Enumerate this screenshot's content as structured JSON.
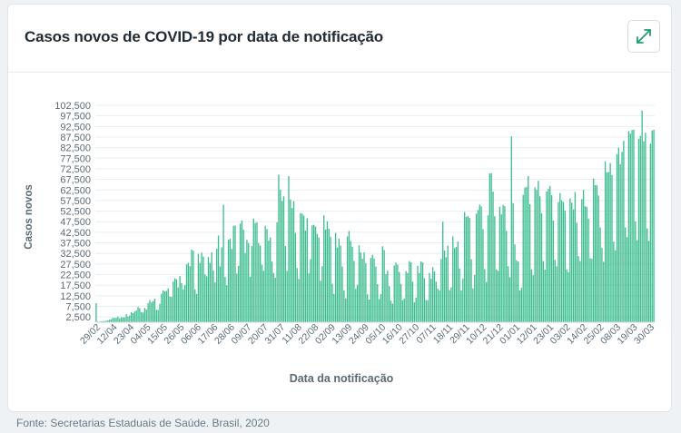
{
  "header": {
    "title": "Casos novos de COVID-19 por data de notificação"
  },
  "footer": {
    "source": "Fonte: Secretarias Estaduais de Saúde. Brasil, 2020"
  },
  "icons": {
    "expand": "expand-arrows-icon"
  },
  "colors": {
    "bar": "#3dbd8f",
    "accent": "#1f9e72",
    "grid": "#e8edf0"
  },
  "chart_data": {
    "type": "bar",
    "title": "",
    "xlabel": "Data da notificação",
    "ylabel": "Casos novos",
    "ylim": [
      0,
      102500
    ],
    "grid": true,
    "y_ticks": [
      "2,500",
      "7,500",
      "12,500",
      "17,500",
      "22,500",
      "27,500",
      "32,500",
      "37,500",
      "42,500",
      "47,500",
      "52,500",
      "57,500",
      "62,500",
      "67,500",
      "72,500",
      "77,500",
      "82,500",
      "87,500",
      "92,500",
      "97,500",
      "102,500"
    ],
    "x_tick_labels": [
      "29/02",
      "12/04",
      "23/04",
      "04/05",
      "15/05",
      "26/05",
      "06/06",
      "17/06",
      "28/06",
      "09/07",
      "20/07",
      "31/07",
      "11/08",
      "22/08",
      "02/09",
      "13/09",
      "24/09",
      "05/10",
      "16/10",
      "27/10",
      "07/11",
      "18/11",
      "29/11",
      "10/12",
      "21/12",
      "01/01",
      "12/01",
      "23/01",
      "03/02",
      "14/02",
      "25/02",
      "08/03",
      "19/03",
      "30/03"
    ],
    "x_start_date": "2020-02-26",
    "x_end_date": "2021-03-31",
    "values": [
      9000,
      300,
      300,
      500,
      500,
      600,
      700,
      900,
      1200,
      1500,
      2100,
      2000,
      2100,
      2700,
      1800,
      2300,
      2300,
      2300,
      3800,
      2700,
      3200,
      4700,
      4300,
      5100,
      5600,
      7200,
      6600,
      4800,
      4600,
      6800,
      6000,
      9000,
      10500,
      9400,
      10000,
      11100,
      5900,
      5800,
      8700,
      13400,
      15100,
      14600,
      14800,
      16000,
      12200,
      12000,
      19200,
      20800,
      20300,
      16500,
      21800,
      18500,
      15600,
      17500,
      27300,
      28000,
      26500,
      34300,
      33800,
      15600,
      13400,
      32300,
      28000,
      32900,
      31000,
      22600,
      21700,
      30800,
      28000,
      33000,
      24500,
      18800,
      34800,
      41000,
      26400,
      35400,
      55500,
      21400,
      17500,
      39000,
      39500,
      34600,
      45600,
      45700,
      23000,
      26700,
      46600,
      48100,
      43800,
      32700,
      38900,
      37400,
      21500,
      36000,
      49000,
      46800,
      47300,
      37400,
      36200,
      27200,
      24300,
      45600,
      44100,
      38500,
      40100,
      28700,
      23200,
      21000,
      47200,
      69700,
      62600,
      57300,
      59500,
      36000,
      24300,
      69000,
      58000,
      54000,
      57200,
      42200,
      25600,
      20500,
      51600,
      51300,
      50400,
      43300,
      49100,
      23100,
      29900,
      45800,
      46000,
      45200,
      41800,
      40000,
      19600,
      26500,
      50500,
      43800,
      47700,
      44200,
      40400,
      18200,
      13400,
      42200,
      35300,
      39500,
      36200,
      26300,
      15100,
      11300,
      40500,
      43100,
      38400,
      35700,
      29000,
      15800,
      17700,
      36300,
      33000,
      30000,
      33000,
      27900,
      13200,
      10700,
      30400,
      31900,
      30100,
      26300,
      18000,
      10900,
      13300,
      35900,
      34100,
      22800,
      24400,
      17100,
      10200,
      8800,
      26800,
      28200,
      27200,
      23800,
      18100,
      10400,
      11200,
      24200,
      23300,
      28900,
      28300,
      19200,
      9400,
      11600,
      26600,
      23200,
      28800,
      28200,
      20800,
      10500,
      10400,
      23300,
      20600,
      26000,
      24000,
      19200,
      15900,
      15000,
      29900,
      47500,
      33900,
      30700,
      36200,
      15200,
      16500,
      40600,
      35000,
      35500,
      38100,
      25400,
      15000,
      20700,
      52100,
      49800,
      50200,
      49300,
      29800,
      16000,
      22300,
      51300,
      53000,
      55600,
      54700,
      44000,
      25100,
      19000,
      50500,
      70300,
      70400,
      61700,
      50100,
      25000,
      24300,
      54600,
      51000,
      55400,
      54800,
      43200,
      26500,
      21300,
      87800,
      56300,
      36800,
      29300,
      28700,
      15000,
      16300,
      60200,
      63600,
      64000,
      69000,
      55800,
      25000,
      22200,
      63700,
      62500,
      66800,
      59500,
      51500,
      28900,
      24900,
      61800,
      63000,
      64400,
      60100,
      48100,
      29500,
      26400,
      56800,
      61000,
      57600,
      56800,
      52800,
      25000,
      23700,
      58500,
      56500,
      53300,
      61500,
      47000,
      31300,
      28900,
      58200,
      62500,
      54800,
      54500,
      48900,
      30200,
      30000,
      67900,
      64800,
      64700,
      59900,
      44800,
      35100,
      28600,
      76000,
      70800,
      71000,
      75200,
      69600,
      38100,
      34000,
      79400,
      82400,
      74600,
      80500,
      85700,
      44800,
      40200,
      90300,
      89100,
      90800,
      91000,
      47600,
      38800,
      86600,
      88000,
      100000,
      85500,
      89500,
      44300,
      38500,
      84400,
      90600,
      91000
    ]
  }
}
